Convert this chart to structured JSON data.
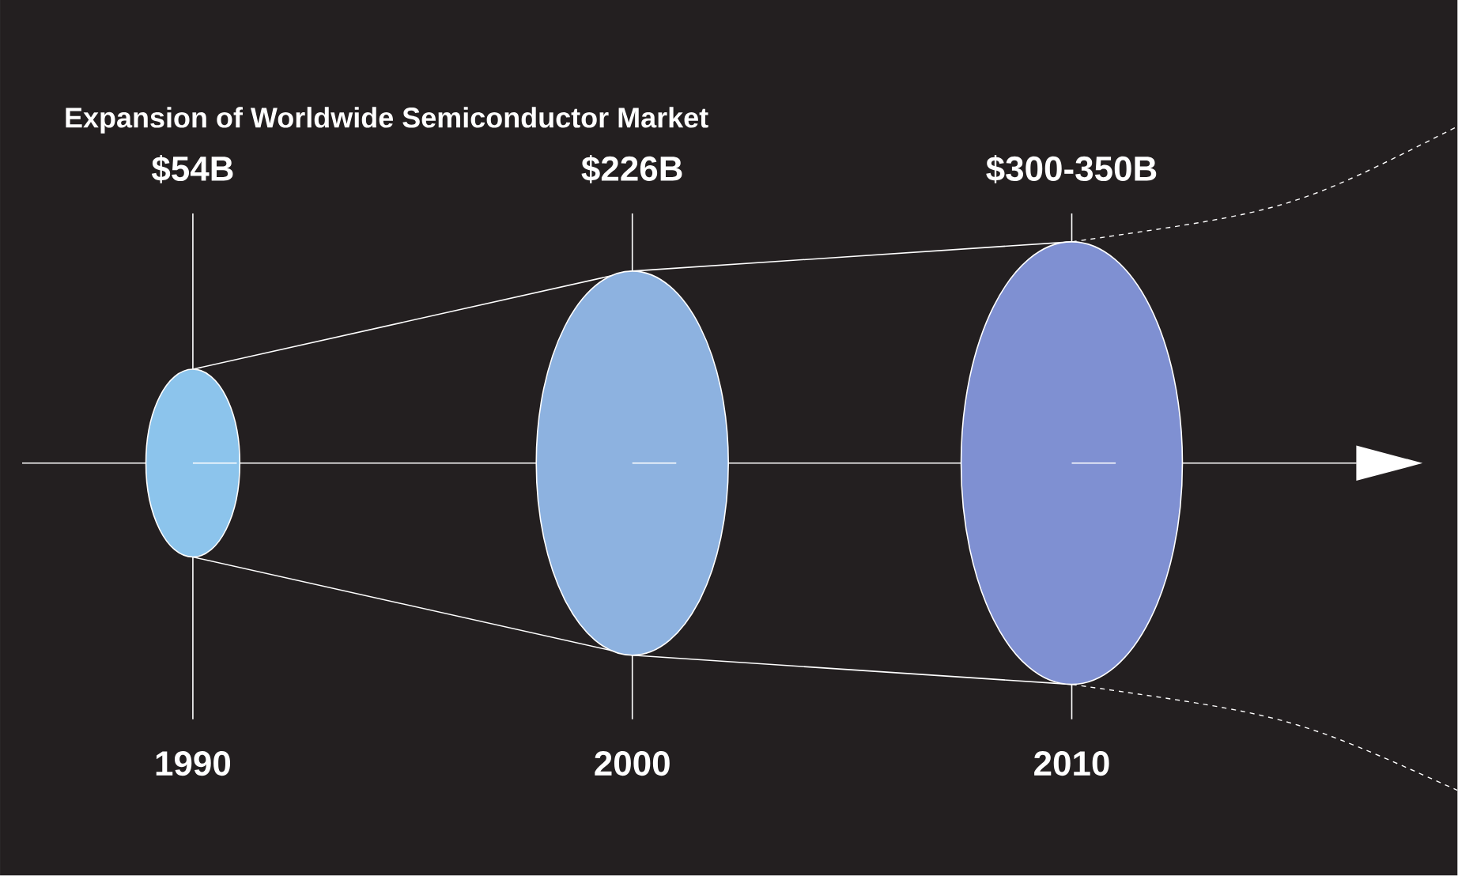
{
  "chart_data": {
    "type": "other",
    "title": "Expansion of Worldwide Semiconductor Market",
    "categories": [
      "1990",
      "2000",
      "2010"
    ],
    "values": [
      54,
      226,
      300
    ],
    "value_labels": [
      "$54B",
      "$226B",
      "$300-350B"
    ],
    "colors": [
      "#8cc4ec",
      "#8db2e0",
      "#7f90d2"
    ]
  }
}
